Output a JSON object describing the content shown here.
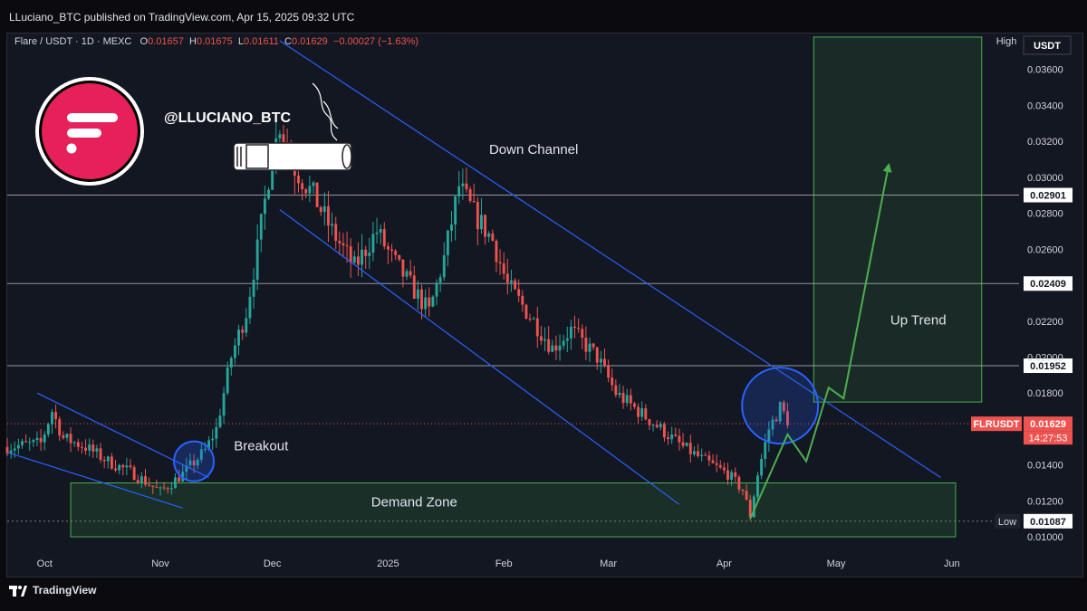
{
  "header": {
    "publisher": "LLuciano_BTC published on TradingView.com, Apr 15, 2025 09:32 UTC"
  },
  "symbol_bar": {
    "name": "Flare / USDT · 1D · MEXC",
    "o_label": "O",
    "o_value": "0.01657",
    "h_label": "H",
    "h_value": "0.01675",
    "l_label": "L",
    "l_value": "0.01611",
    "c_label": "C",
    "c_value": "0.01629",
    "change": "−0.00027 (−1.63%)"
  },
  "axis": {
    "currency": "USDT",
    "high_tag": "High",
    "low_tag": "Low",
    "low_value": "0.01087",
    "ticker_tag": "FLRUSDT",
    "last_price": "0.01629",
    "countdown": "14:27:53"
  },
  "footer": {
    "brand": "TradingView"
  },
  "branding": {
    "handle": "@LLUCIANO_BTC",
    "logo_color": "#e62058"
  },
  "annotations": {
    "down_channel": "Down Channel",
    "up_trend": "Up Trend",
    "breakout": "Breakout",
    "demand_zone": "Demand Zone"
  },
  "colors": {
    "up": "#26a69a",
    "down": "#ef5350",
    "channel": "#2962ff",
    "arrow": "#4caf50",
    "zone_stroke": "#4caf50",
    "circle": "#2962ff"
  },
  "chart_data": {
    "type": "candlestick",
    "title": "",
    "xlabel": "",
    "ylabel": "",
    "ylim": [
      0.0095,
      0.038
    ],
    "price_ticks": [
      "0.01000",
      "0.01200",
      "0.01400",
      "0.01800",
      "0.02000",
      "0.02200",
      "0.02600",
      "0.02800",
      "0.03000",
      "0.03200",
      "0.03400",
      "0.03600"
    ],
    "x_ticks": [
      "Oct",
      "Nov",
      "Dec",
      "2025",
      "Feb",
      "Mar",
      "Apr",
      "May",
      "Jun"
    ],
    "x_tick_days": [
      1,
      32,
      62,
      93,
      124,
      152,
      183,
      213,
      244
    ],
    "x_range_days": [
      -9,
      262
    ],
    "last_date": "2025-04-15",
    "horizontal_levels": [
      "0.02901",
      "0.02409",
      "0.01952"
    ],
    "anchors": [
      [
        -9,
        0.015
      ],
      [
        0,
        0.0152
      ],
      [
        3,
        0.017
      ],
      [
        6,
        0.0155
      ],
      [
        12,
        0.015
      ],
      [
        18,
        0.0142
      ],
      [
        25,
        0.0135
      ],
      [
        32,
        0.0125
      ],
      [
        38,
        0.0135
      ],
      [
        44,
        0.0148
      ],
      [
        47,
        0.016
      ],
      [
        51,
        0.02
      ],
      [
        55,
        0.0225
      ],
      [
        58,
        0.026
      ],
      [
        61,
        0.03
      ],
      [
        64,
        0.033
      ],
      [
        68,
        0.0305
      ],
      [
        73,
        0.029
      ],
      [
        78,
        0.027
      ],
      [
        84,
        0.025
      ],
      [
        90,
        0.027
      ],
      [
        94,
        0.0255
      ],
      [
        99,
        0.024
      ],
      [
        104,
        0.0225
      ],
      [
        108,
        0.0255
      ],
      [
        112,
        0.0295
      ],
      [
        116,
        0.028
      ],
      [
        121,
        0.0265
      ],
      [
        125,
        0.024
      ],
      [
        132,
        0.022
      ],
      [
        137,
        0.0205
      ],
      [
        142,
        0.0215
      ],
      [
        149,
        0.02
      ],
      [
        154,
        0.018
      ],
      [
        160,
        0.017
      ],
      [
        166,
        0.016
      ],
      [
        172,
        0.015
      ],
      [
        178,
        0.0142
      ],
      [
        184,
        0.0135
      ],
      [
        188,
        0.0126
      ],
      [
        190,
        0.0112
      ],
      [
        192,
        0.0135
      ],
      [
        195,
        0.016
      ],
      [
        198,
        0.0172
      ],
      [
        200,
        0.0165
      ]
    ],
    "overlays": {
      "down_channel_upper": [
        [
          64,
          0.0376
        ],
        [
          241,
          0.0133
        ]
      ],
      "down_channel_lower": [
        [
          64,
          0.0282
        ],
        [
          171,
          0.0118
        ]
      ],
      "early_channel_upper": [
        [
          -1,
          0.018
        ],
        [
          45,
          0.0133
        ]
      ],
      "early_channel_lower": [
        [
          -9,
          0.0147
        ],
        [
          38,
          0.0116
        ]
      ],
      "projection": [
        [
          190,
          0.011
        ],
        [
          200,
          0.0157
        ],
        [
          205,
          0.0142
        ],
        [
          211,
          0.0183
        ],
        [
          215,
          0.0177
        ],
        [
          227,
          0.0306
        ]
      ],
      "demand_zone": {
        "x0": 8,
        "x1": 245,
        "y_top": 0.013,
        "y_bottom": 0.01
      },
      "target_box": {
        "x0": 207,
        "x1": 252,
        "y_top": 0.0378,
        "y_bottom": 0.0175
      },
      "breakout_circle": {
        "x": 41,
        "y": 0.0142
      },
      "retest_circle": {
        "x": 198,
        "y": 0.0173
      },
      "current_price_line": 0.01629
    }
  }
}
